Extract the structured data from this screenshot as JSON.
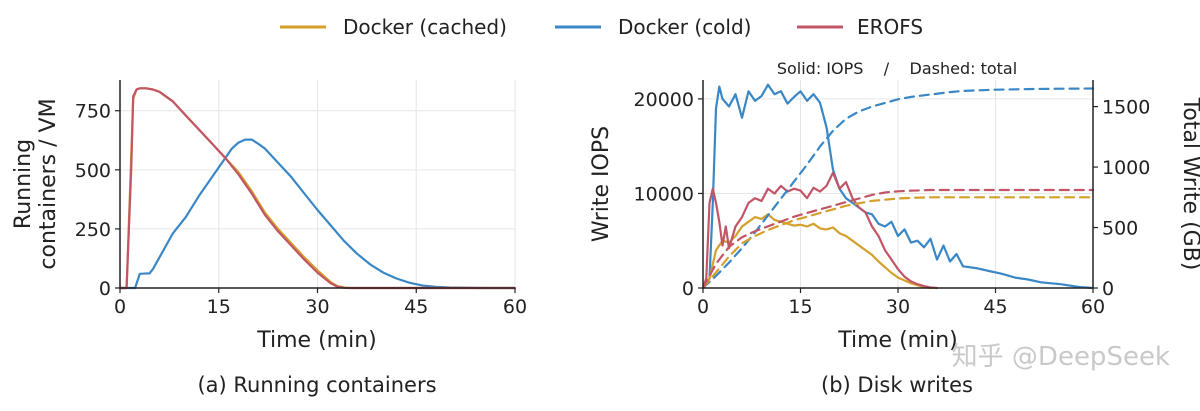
{
  "legend": [
    {
      "label": "Docker (cached)",
      "color": "#d4a02a"
    },
    {
      "label": "Docker (cold)",
      "color": "#3a87c6"
    },
    {
      "label": "EROFS",
      "color": "#c25566"
    }
  ],
  "watermark": "知乎 @DeepSeek",
  "chart_data": [
    {
      "type": "line",
      "caption": "(a) Running containers",
      "xlabel": "Time (min)",
      "ylabel_lines": [
        "Running",
        "containers / VM"
      ],
      "xlim": [
        0,
        60
      ],
      "ylim": [
        0,
        880
      ],
      "xticks": [
        0,
        15,
        30,
        45,
        60
      ],
      "yticks": [
        0,
        250,
        500,
        750
      ],
      "grid": true,
      "series": [
        {
          "name": "Docker (cold)",
          "color": "#3a87c6",
          "x": [
            0,
            2.3,
            3,
            4.5,
            5,
            6,
            8,
            10,
            12,
            14,
            16,
            17,
            18,
            19,
            20,
            21,
            22,
            24,
            26,
            28,
            30,
            32,
            34,
            36,
            38,
            40,
            42,
            44,
            46,
            48,
            50,
            55,
            60
          ],
          "y": [
            0,
            0,
            60,
            62,
            80,
            130,
            230,
            300,
            390,
            470,
            550,
            590,
            615,
            628,
            628,
            610,
            590,
            530,
            470,
            400,
            330,
            265,
            200,
            145,
            100,
            65,
            40,
            22,
            10,
            5,
            2,
            0,
            0
          ]
        },
        {
          "name": "Docker (cached)",
          "color": "#d4a02a",
          "x": [
            0,
            1,
            2,
            2.5,
            3,
            4,
            5,
            6,
            8,
            10,
            12,
            14,
            16,
            18,
            20,
            22,
            24,
            26,
            28,
            30,
            32,
            33,
            34,
            35,
            60
          ],
          "y": [
            0,
            0,
            800,
            840,
            845,
            845,
            840,
            830,
            790,
            730,
            670,
            610,
            550,
            490,
            410,
            320,
            250,
            190,
            130,
            75,
            25,
            8,
            2,
            0,
            0
          ]
        },
        {
          "name": "EROFS",
          "color": "#c25566",
          "x": [
            0,
            1,
            1.7,
            2,
            2.5,
            3,
            4,
            5,
            6,
            8,
            10,
            12,
            14,
            16,
            18,
            20,
            22,
            24,
            26,
            28,
            30,
            32,
            33,
            34,
            35,
            60
          ],
          "y": [
            0,
            0,
            500,
            810,
            840,
            845,
            845,
            840,
            830,
            790,
            730,
            670,
            610,
            550,
            480,
            400,
            310,
            240,
            180,
            120,
            65,
            20,
            6,
            1,
            0,
            0
          ]
        }
      ]
    },
    {
      "type": "line",
      "caption": "(b) Disk writes",
      "xlabel": "Time (min)",
      "ylabel": "Write IOPS",
      "ylabel_right": "Total Write (GB)",
      "subtitle": "Solid: IOPS    /    Dashed: total",
      "xlim": [
        0,
        60
      ],
      "ylim": [
        0,
        22000
      ],
      "ylim_right": [
        0,
        1720
      ],
      "xticks": [
        0,
        15,
        30,
        45,
        60
      ],
      "yticks": [
        0,
        10000,
        20000
      ],
      "yticks_right": [
        0,
        500,
        1000,
        1500
      ],
      "grid": true,
      "series": [
        {
          "name": "Docker (cold)",
          "style": "solid",
          "color": "#3a87c6",
          "x": [
            0,
            1,
            1.5,
            2,
            2.5,
            3,
            4,
            5,
            6,
            7,
            8,
            9,
            10,
            11,
            12,
            13,
            14,
            15,
            16,
            17,
            18,
            19,
            20,
            21,
            22,
            23,
            24,
            25,
            26,
            27,
            28,
            29,
            30,
            31,
            32,
            33,
            34,
            35,
            36,
            37,
            38,
            39,
            40,
            42,
            44,
            46,
            48,
            50,
            52,
            55,
            58,
            60
          ],
          "y": [
            0,
            1000,
            9000,
            19000,
            21300,
            20000,
            19200,
            20500,
            18000,
            20800,
            19800,
            20300,
            21500,
            20500,
            20800,
            19500,
            20200,
            20800,
            19800,
            20500,
            19600,
            17000,
            12500,
            10500,
            9500,
            9000,
            8500,
            8000,
            7800,
            6800,
            6500,
            7000,
            5500,
            6200,
            4800,
            5000,
            4300,
            5200,
            3000,
            4500,
            2800,
            3600,
            2300,
            2100,
            1800,
            1500,
            1100,
            900,
            600,
            400,
            100,
            0
          ]
        },
        {
          "name": "Docker (cached)",
          "style": "solid",
          "color": "#d4a02a",
          "x": [
            0,
            1,
            2,
            3,
            4,
            5,
            6,
            7,
            8,
            9,
            10,
            11,
            12,
            13,
            14,
            15,
            16,
            17,
            18,
            19,
            20,
            21,
            22,
            23,
            24,
            25,
            26,
            27,
            28,
            29,
            30,
            31,
            32,
            33,
            34,
            35
          ],
          "y": [
            0,
            1000,
            4000,
            5000,
            4800,
            5500,
            6500,
            7000,
            7500,
            7300,
            7800,
            7200,
            7000,
            6800,
            6600,
            6700,
            6500,
            6800,
            6300,
            6200,
            6400,
            5800,
            5500,
            5000,
            4500,
            4000,
            3500,
            2800,
            2200,
            1600,
            1100,
            800,
            500,
            300,
            100,
            0
          ]
        },
        {
          "name": "EROFS",
          "style": "solid",
          "color": "#c25566",
          "x": [
            0,
            0.5,
            1,
            1.5,
            2,
            2.5,
            3,
            3.5,
            4,
            5,
            6,
            7,
            8,
            9,
            10,
            11,
            12,
            13,
            14,
            15,
            16,
            17,
            18,
            19,
            20,
            21,
            22,
            23,
            24,
            25,
            26,
            27,
            28,
            29,
            30,
            31,
            32,
            33,
            34,
            35,
            36
          ],
          "y": [
            0,
            1000,
            9000,
            10500,
            9000,
            7000,
            4500,
            6500,
            4200,
            6500,
            7500,
            9000,
            9500,
            9200,
            10500,
            10000,
            10800,
            10200,
            10500,
            10300,
            9500,
            10600,
            10200,
            10800,
            12200,
            10500,
            11200,
            9500,
            8500,
            8000,
            6500,
            5500,
            4000,
            3000,
            2000,
            1200,
            700,
            400,
            200,
            50,
            0
          ]
        },
        {
          "name": "Docker (cold)",
          "style": "dashed",
          "axis": "right",
          "color": "#3a87c6",
          "x": [
            0,
            2,
            4,
            6,
            8,
            10,
            12,
            14,
            16,
            18,
            20,
            22,
            24,
            26,
            28,
            30,
            32,
            35,
            38,
            40,
            45,
            50,
            55,
            60
          ],
          "y": [
            0,
            100,
            210,
            330,
            460,
            600,
            740,
            880,
            1020,
            1170,
            1300,
            1400,
            1460,
            1500,
            1530,
            1560,
            1580,
            1600,
            1620,
            1630,
            1640,
            1645,
            1648,
            1650
          ]
        },
        {
          "name": "Docker (cached)",
          "style": "dashed",
          "axis": "right",
          "color": "#d4a02a",
          "x": [
            0,
            2,
            4,
            6,
            8,
            10,
            12,
            14,
            16,
            18,
            20,
            22,
            24,
            26,
            28,
            30,
            32,
            35,
            40,
            60
          ],
          "y": [
            0,
            130,
            260,
            370,
            430,
            480,
            520,
            560,
            590,
            620,
            650,
            680,
            700,
            720,
            730,
            740,
            745,
            750,
            750,
            750
          ]
        },
        {
          "name": "EROFS",
          "style": "dashed",
          "axis": "right",
          "color": "#c25566",
          "x": [
            0,
            2,
            4,
            6,
            8,
            10,
            12,
            14,
            16,
            18,
            20,
            22,
            24,
            26,
            28,
            30,
            32,
            35,
            40,
            60
          ],
          "y": [
            0,
            200,
            340,
            420,
            470,
            510,
            550,
            590,
            620,
            650,
            680,
            710,
            740,
            770,
            790,
            800,
            805,
            810,
            810,
            810
          ]
        }
      ]
    }
  ]
}
